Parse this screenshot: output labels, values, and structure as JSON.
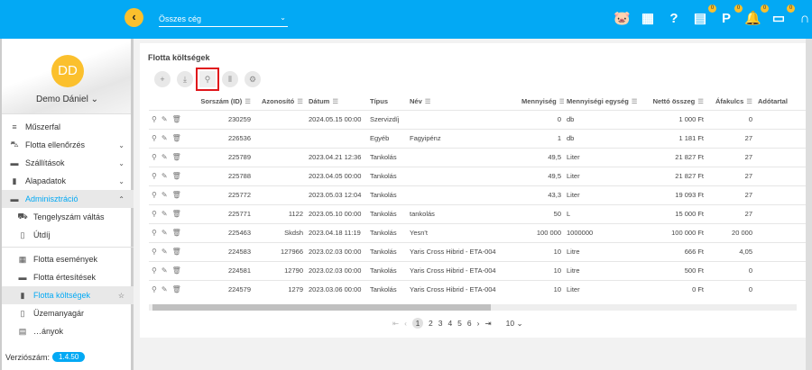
{
  "header": {
    "company_select": "Összes cég",
    "icons": [
      {
        "name": "piggy-bank-icon",
        "glyph": "🐷",
        "badge": null,
        "color": "#fbc02d"
      },
      {
        "name": "dashboard-icon",
        "glyph": "▦",
        "badge": null
      },
      {
        "name": "help-icon",
        "glyph": "?",
        "badge": null
      },
      {
        "name": "document-sync-icon",
        "glyph": "▤",
        "badge": "0"
      },
      {
        "name": "parking-icon",
        "glyph": "P",
        "badge": "0"
      },
      {
        "name": "bell-icon",
        "glyph": "🔔",
        "badge": "0"
      },
      {
        "name": "chat-icon",
        "glyph": "▭",
        "badge": "0"
      },
      {
        "name": "headset-icon",
        "glyph": "∩",
        "badge": null
      }
    ]
  },
  "user": {
    "initials": "DD",
    "name": "Demo Dániel"
  },
  "sidebar": {
    "items": [
      {
        "label": "Műszerfal",
        "icon": "≡",
        "arrow": ""
      },
      {
        "label": "Flotta ellenőrzés",
        "icon": "⛍",
        "arrow": "⌄"
      },
      {
        "label": "Szállítások",
        "icon": "▬",
        "arrow": "⌄"
      },
      {
        "label": "Alapadatok",
        "icon": "▮",
        "arrow": "⌄"
      },
      {
        "label": "Adminisztráció",
        "icon": "▬",
        "arrow": "⌃",
        "active": true
      },
      {
        "label": "Tengelyszám váltás",
        "icon": "⛟",
        "sub": true
      },
      {
        "label": "Útdíj",
        "icon": "▯",
        "sub": true
      },
      {
        "label": "Flotta események",
        "icon": "▦",
        "sub": true,
        "divider": true
      },
      {
        "label": "Flotta értesítések",
        "icon": "▬",
        "sub": true
      },
      {
        "label": "Flotta költségek",
        "icon": "▮",
        "sub": true,
        "active": true,
        "star": "☆"
      },
      {
        "label": "Üzemanyagár",
        "icon": "▯",
        "sub": true
      },
      {
        "label": "…ányok",
        "icon": "▤",
        "sub": true
      }
    ],
    "version_label": "Verziószám:",
    "version": "1.4.50"
  },
  "page": {
    "title": "Flotta költségek"
  },
  "table": {
    "columns": [
      "",
      "Sorszám (ID)",
      "Azonosító",
      "Dátum",
      "Típus",
      "Név",
      "Mennyiség",
      "Mennyiségi egység",
      "Nettó összeg",
      "Áfakulcs",
      "Adótartal"
    ],
    "rows": [
      [
        "230259",
        "",
        "2024.05.15 00:00",
        "Szervizdíj",
        "",
        "0",
        "db",
        "1 000 Ft",
        "0"
      ],
      [
        "226536",
        "",
        "",
        "Egyéb",
        "Fagyipénz",
        "1",
        "db",
        "1 181 Ft",
        "27"
      ],
      [
        "225789",
        "",
        "2023.04.21 12:36",
        "Tankolás",
        "",
        "49,5",
        "Liter",
        "21 827 Ft",
        "27"
      ],
      [
        "225788",
        "",
        "2023.04.05 00:00",
        "Tankolás",
        "",
        "49,5",
        "Liter",
        "21 827 Ft",
        "27"
      ],
      [
        "225772",
        "",
        "2023.05.03 12:04",
        "Tankolás",
        "",
        "43,3",
        "Liter",
        "19 093 Ft",
        "27"
      ],
      [
        "225771",
        "1122",
        "2023.05.10 00:00",
        "Tankolás",
        "tankolás",
        "50",
        "L",
        "15 000 Ft",
        "27"
      ],
      [
        "225463",
        "Skdsh",
        "2023.04.18 11:19",
        "Tankolás",
        "Yesn't",
        "100 000",
        "1000000",
        "100 000 Ft",
        "20 000"
      ],
      [
        "224583",
        "127966",
        "2023.02.03 00:00",
        "Tankolás",
        "Yaris Cross Hibrid - ETA-004",
        "10",
        "Litre",
        "666 Ft",
        "4,05"
      ],
      [
        "224581",
        "12790",
        "2023.02.03 00:00",
        "Tankolás",
        "Yaris Cross Hibrid - ETA-004",
        "10",
        "Litre",
        "500 Ft",
        "0"
      ],
      [
        "224579",
        "1279",
        "2023.03.06 00:00",
        "Tankolás",
        "Yaris Cross Hibrid - ETA-004",
        "10",
        "Liter",
        "0 Ft",
        "0"
      ]
    ]
  },
  "pagination": {
    "pages": [
      "1",
      "2",
      "3",
      "4",
      "5",
      "6"
    ],
    "current": "1",
    "page_size": "10"
  }
}
